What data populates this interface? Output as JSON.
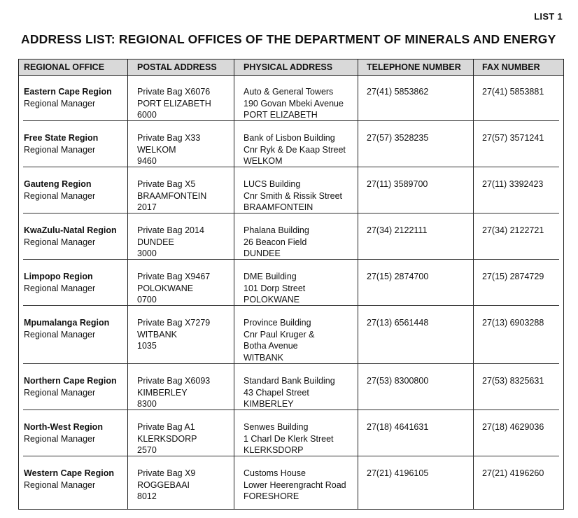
{
  "list_label": "LIST 1",
  "title": "ADDRESS LIST:  REGIONAL OFFICES OF THE DEPARTMENT OF MINERALS AND ENERGY",
  "headers": [
    "REGIONAL OFFICE",
    "POSTAL ADDRESS",
    "PHYSICAL ADDRESS",
    "TELEPHONE NUMBER",
    "FAX NUMBER"
  ],
  "rows": [
    {
      "region": "Eastern Cape Region",
      "role": "Regional Manager",
      "postal": [
        "Private Bag X6076",
        "PORT ELIZABETH",
        "6000"
      ],
      "physical": [
        "Auto & General Towers",
        "190 Govan Mbeki Avenue",
        "PORT ELIZABETH"
      ],
      "tel": "27(41) 5853862",
      "fax": "27(41) 5853881"
    },
    {
      "region": "Free State Region",
      "role": "Regional Manager",
      "postal": [
        "Private Bag X33",
        "WELKOM",
        "9460"
      ],
      "physical": [
        "Bank of Lisbon Building",
        "Cnr Ryk & De Kaap Street",
        "WELKOM"
      ],
      "tel": "27(57) 3528235",
      "fax": "27(57) 3571241"
    },
    {
      "region": "Gauteng Region",
      "role": "Regional Manager",
      "postal": [
        "Private Bag X5",
        "BRAAMFONTEIN",
        "2017"
      ],
      "physical": [
        "LUCS Building",
        "Cnr Smith & Rissik Street",
        "BRAAMFONTEIN"
      ],
      "tel": "27(11) 3589700",
      "fax": "27(11) 3392423"
    },
    {
      "region": "KwaZulu-Natal Region",
      "role": "Regional Manager",
      "postal": [
        "Private Bag 2014",
        "DUNDEE",
        "3000"
      ],
      "physical": [
        "Phalana Building",
        "26 Beacon Field",
        "DUNDEE"
      ],
      "tel": "27(34) 2122111",
      "fax": "27(34) 2122721"
    },
    {
      "region": "Limpopo Region",
      "role": "Regional Manager",
      "postal": [
        "Private Bag X9467",
        "POLOKWANE",
        "0700"
      ],
      "physical": [
        "DME Building",
        "101 Dorp Street",
        "POLOKWANE"
      ],
      "tel": "27(15) 2874700",
      "fax": "27(15) 2874729"
    },
    {
      "region": "Mpumalanga Region",
      "role": "Regional Manager",
      "postal": [
        "Private Bag X7279",
        "WITBANK",
        "1035"
      ],
      "physical": [
        "Province Building",
        "Cnr Paul Kruger &",
        "Botha Avenue",
        "WITBANK"
      ],
      "tel": "27(13) 6561448",
      "fax": "27(13) 6903288"
    },
    {
      "region": "Northern Cape Region",
      "role": "Regional Manager",
      "postal": [
        "Private Bag X6093",
        "KIMBERLEY",
        "8300"
      ],
      "physical": [
        "Standard Bank Building",
        "43 Chapel Street",
        "KIMBERLEY"
      ],
      "tel": "27(53) 8300800",
      "fax": "27(53) 8325631"
    },
    {
      "region": "North-West Region",
      "role": "Regional Manager",
      "postal": [
        "Private Bag A1",
        "KLERKSDORP",
        "2570"
      ],
      "physical": [
        "Senwes Building",
        "1 Charl De Klerk Street",
        "KLERKSDORP"
      ],
      "tel": "27(18) 4641631",
      "fax": "27(18) 4629036"
    },
    {
      "region": "Western Cape Region",
      "role": "Regional Manager",
      "postal": [
        "Private Bag X9",
        "ROGGEBAAI",
        "8012"
      ],
      "physical": [
        "Customs House",
        "Lower Heerengracht Road",
        "FORESHORE"
      ],
      "tel": "27(21) 4196105",
      "fax": "27(21) 4196260"
    }
  ]
}
